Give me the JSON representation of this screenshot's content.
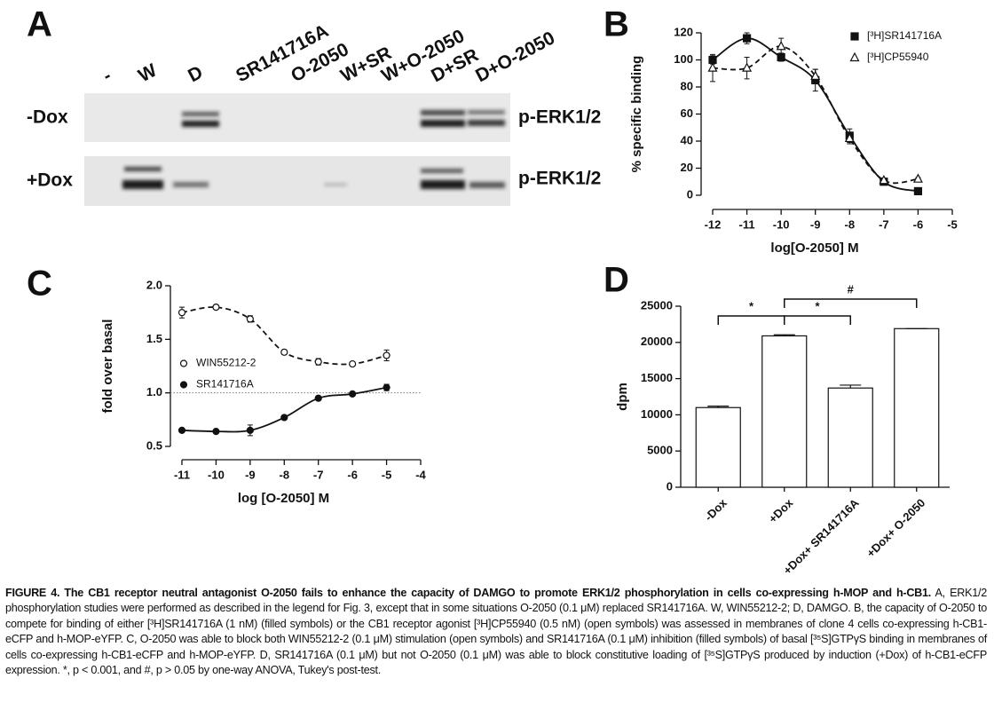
{
  "panel_labels": [
    "A",
    "B",
    "C",
    "D"
  ],
  "blot": {
    "lanes": [
      "-",
      "W",
      "D",
      "SR141716A",
      "O-2050",
      "W+SR",
      "W+O-2050",
      "D+SR",
      "D+O-2050"
    ],
    "rows": [
      "-Dox",
      "+Dox"
    ],
    "band_labels": [
      "p-ERK1/2",
      "p-ERK1/2"
    ]
  },
  "chart_data": [
    {
      "type": "line",
      "xlabel": "log[O-2050] M",
      "ylabel": "% specific binding",
      "x": [
        -12,
        -11,
        -10,
        -9,
        -8,
        -7,
        -6
      ],
      "xlim": [
        -12,
        -5
      ],
      "xticks": [
        -12,
        -11,
        -10,
        -9,
        -8,
        -7,
        -6,
        -5
      ],
      "ylim": [
        0,
        120
      ],
      "yticks": [
        0,
        20,
        40,
        60,
        80,
        100,
        120
      ],
      "legend": "upper right",
      "series": [
        {
          "name": "[³H]SR141716A",
          "color": "#111111",
          "marker": "square",
          "filled": true,
          "line_style": "solid",
          "values": [
            100,
            116,
            102,
            85,
            44,
            10,
            3
          ],
          "errors": [
            3,
            4,
            3,
            8,
            5,
            1,
            1
          ]
        },
        {
          "name": "[³H]CP55940",
          "color": "#111111",
          "marker": "triangle",
          "filled": false,
          "line_style": "dashed",
          "values": [
            94,
            94,
            110,
            88,
            42,
            11,
            12
          ],
          "errors": [
            10,
            8,
            6,
            5,
            4,
            1,
            1
          ]
        }
      ]
    },
    {
      "type": "line",
      "xlabel": "log [O-2050] M",
      "ylabel": "fold over basal",
      "x": [
        -11,
        -10,
        -9,
        -8,
        -7,
        -6,
        -5
      ],
      "xlim": [
        -11,
        -4
      ],
      "xticks": [
        -11,
        -10,
        -9,
        -8,
        -7,
        -6,
        -5,
        -4
      ],
      "ylim": [
        0.5,
        2
      ],
      "yticks": [
        0.5,
        {
          "value": 1,
          "label": "1.0"
        },
        1.5,
        {
          "value": 2,
          "label": "2.0"
        }
      ],
      "hline": 1,
      "legend": "center left",
      "series": [
        {
          "name": "WIN55212-2",
          "color": "#111111",
          "marker": "circle",
          "filled": false,
          "line_style": "dashed",
          "values": [
            1.75,
            1.8,
            1.69,
            1.38,
            1.29,
            1.27,
            1.35
          ],
          "errors": [
            0.05,
            0.02,
            0.03,
            0.02,
            0.03,
            0.02,
            0.05
          ]
        },
        {
          "name": "SR141716A",
          "color": "#111111",
          "marker": "circle",
          "filled": true,
          "line_style": "solid",
          "values": [
            0.65,
            0.64,
            0.65,
            0.77,
            0.95,
            0.99,
            1.05
          ],
          "errors": [
            0.01,
            0.01,
            0.05,
            0.01,
            0.01,
            0.01,
            0.03
          ]
        }
      ]
    },
    {
      "type": "bar",
      "ylabel": "dpm",
      "categories": [
        "-Dox",
        "+Dox",
        "+Dox+ SR141716A",
        "+Dox+ O-2050"
      ],
      "values": [
        11000,
        20900,
        13700,
        21900
      ],
      "errors": [
        200,
        150,
        400,
        0
      ],
      "color": "#ffffff",
      "ylim": [
        0,
        25000
      ],
      "yticks": [
        0,
        5000,
        10000,
        15000,
        20000,
        25000
      ],
      "annotations": [
        "*",
        "*",
        "#"
      ]
    }
  ],
  "caption": {
    "label": "FIGURE 4.",
    "title": "The CB1 receptor neutral antagonist O-2050 fails to enhance the capacity of DAMGO to promote ERK1/2 phosphorylation in cells co-expressing h-MOP and h-CB1.",
    "body": "A, ERK1/2 phosphorylation studies were performed as described in the legend for Fig. 3, except that in some situations O-2050 (0.1 μM) replaced SR141716A. W, WIN55212-2; D, DAMGO. B, the capacity of O-2050 to compete for binding of either [³H]SR141716A (1 nM) (filled symbols) or the CB1 receptor agonist [³H]CP55940 (0.5 nM) (open symbols) was assessed in membranes of clone 4 cells co-expressing h-CB1-eCFP and h-MOP-eYFP. C, O-2050 was able to block both WIN55212-2 (0.1 μM) stimulation (open symbols) and SR141716A (0.1 μM) inhibition (filled symbols) of basal [³⁵S]GTPγS binding in membranes of cells co-expressing h-CB1-eCFP and h-MOP-eYFP. D, SR141716A (0.1 μM) but not O-2050 (0.1 μM) was able to block constitutive loading of [³⁵S]GTPγS produced by induction (+Dox) of h-CB1-eCFP expression. *, p < 0.001, and #, p > 0.05 by one-way ANOVA, Tukey's post-test."
  }
}
